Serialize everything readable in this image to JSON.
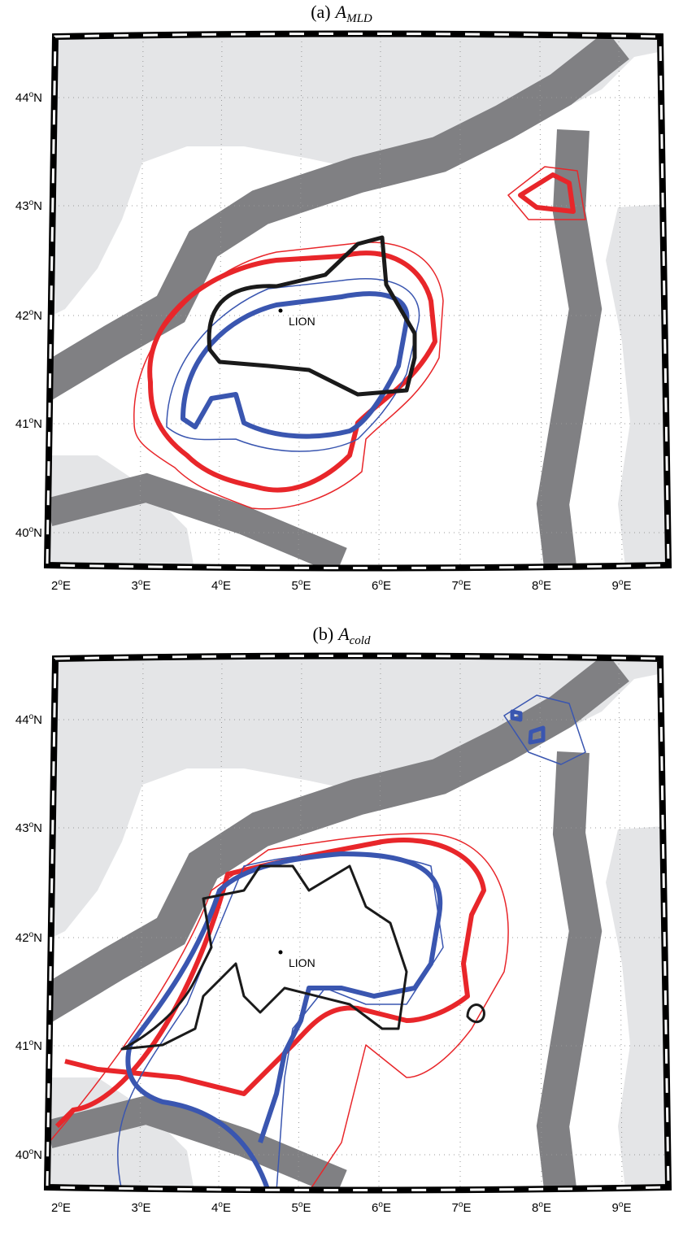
{
  "panels": [
    {
      "title": {
        "label": "(a)",
        "symbol": "A",
        "subscript": "MLD"
      },
      "site_label": "LION"
    },
    {
      "title": {
        "label": "(b)",
        "symbol": "A",
        "subscript": "cold"
      },
      "site_label": "LION"
    }
  ],
  "axes": {
    "lat_labels": [
      "44",
      "43",
      "42",
      "41",
      "40"
    ],
    "lat_hemisphere": "N",
    "lon_labels": [
      "2",
      "3",
      "4",
      "5",
      "6",
      "7",
      "8",
      "9"
    ],
    "lon_hemisphere": "E",
    "degree_mark": "o"
  }
}
